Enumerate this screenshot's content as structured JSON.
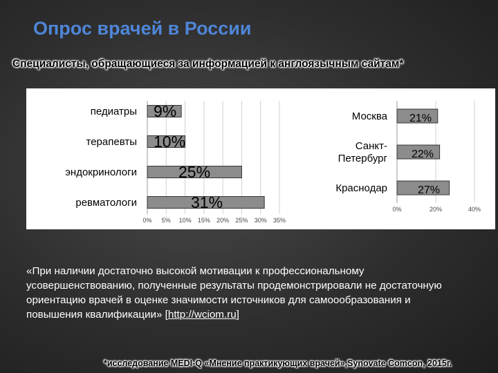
{
  "title": "Опрос врачей в России",
  "subtitle": "Специалисты, обращающиеся за информацией к англоязычным сайтам*",
  "quote": {
    "text": "«При наличии достаточно высокой мотивации к профессиональному усовершенствованию, полученные результаты продемонстрировали не достаточную ориентацию врачей в оценке значимости источников для самоообразования и повышения квалификации» [",
    "link": "http://wciom.ru",
    "close": "]"
  },
  "footnote": "*исследование MEDI-Q «Мнение практикующих врачей»,Synovate Comcon, 2015г.",
  "colors": {
    "bar": "#8c8c8c",
    "bar_edge": "#333333",
    "title": "#4f86d8"
  },
  "chart_data": [
    {
      "type": "bar",
      "orientation": "horizontal",
      "categories": [
        "педиатры",
        "терапевты",
        "эндокринологи",
        "ревматологи"
      ],
      "values": [
        9,
        10,
        25,
        31
      ],
      "data_labels": [
        "9%",
        "10%",
        "25%",
        "31%"
      ],
      "ticks": [
        "0%",
        "5%",
        "10%",
        "15%",
        "20%",
        "25%",
        "30%",
        "35%"
      ],
      "xlim": [
        0,
        35
      ],
      "grid": true
    },
    {
      "type": "bar",
      "orientation": "horizontal",
      "categories": [
        "Москва",
        "Санкт-Петербург",
        "Краснодар"
      ],
      "category_lines": [
        [
          "Москва"
        ],
        [
          "Санкт-",
          "Петербург"
        ],
        [
          "Краснодар"
        ]
      ],
      "values": [
        21,
        22,
        27
      ],
      "data_labels": [
        "21%",
        "22%",
        "27%"
      ],
      "ticks": [
        "0%",
        "20%",
        "40%"
      ],
      "xlim": [
        0,
        40
      ],
      "grid": true
    }
  ]
}
